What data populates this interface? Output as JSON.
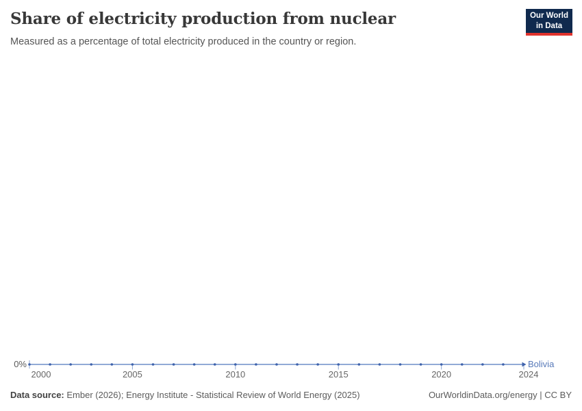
{
  "header": {
    "title": "Share of electricity production from nuclear",
    "subtitle": "Measured as a percentage of total electricity produced in the country or region.",
    "logo": {
      "line1": "Our World",
      "line2": "in Data"
    }
  },
  "chart_data": {
    "type": "line",
    "title": "Share of electricity production from nuclear",
    "xlabel": "",
    "ylabel": "",
    "x_range": [
      2000,
      2024
    ],
    "x_ticks": [
      2000,
      2005,
      2010,
      2015,
      2020,
      2024
    ],
    "y_tick_labels": [
      "0%"
    ],
    "grid": false,
    "legend_position": "end-of-line",
    "series": [
      {
        "name": "Bolivia",
        "color": "#6d8dc9",
        "marker_color": "#3f63ac",
        "x": [
          2000,
          2001,
          2002,
          2003,
          2004,
          2005,
          2006,
          2007,
          2008,
          2009,
          2010,
          2011,
          2012,
          2013,
          2014,
          2015,
          2016,
          2017,
          2018,
          2019,
          2020,
          2021,
          2022,
          2023,
          2024
        ],
        "values": [
          0,
          0,
          0,
          0,
          0,
          0,
          0,
          0,
          0,
          0,
          0,
          0,
          0,
          0,
          0,
          0,
          0,
          0,
          0,
          0,
          0,
          0,
          0,
          0,
          0
        ]
      }
    ],
    "axis_colors": {
      "tick": "#8da6d2",
      "text": "#666666"
    }
  },
  "footer": {
    "source_label": "Data source:",
    "source_text": " Ember (2026); Energy Institute - Statistical Review of World Energy (2025)",
    "link_text": "OurWorldinData.org/energy | CC BY"
  },
  "colors": {
    "logo_navy": "#102a4e",
    "logo_red": "#e0332d",
    "series_blue": "#6d8dc9",
    "marker_blue": "#3f63ac"
  }
}
